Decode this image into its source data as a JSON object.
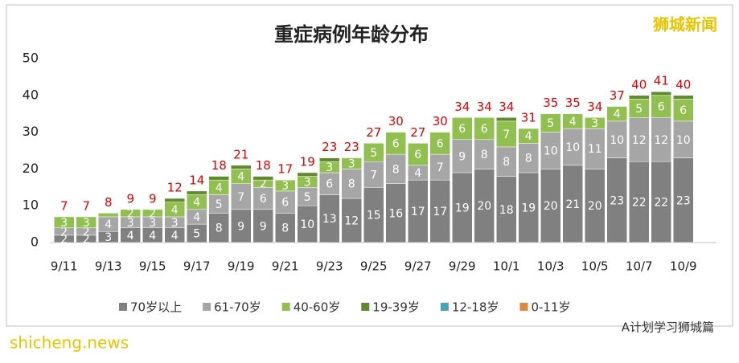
{
  "chart_data": {
    "type": "stacked_bar",
    "title": "重症病例年龄分布",
    "categories": [
      "9/11",
      null,
      "9/13",
      null,
      "9/15",
      null,
      "9/17",
      null,
      "9/19",
      null,
      "9/21",
      null,
      "9/23",
      null,
      "9/25",
      null,
      "9/27",
      null,
      "9/29",
      null,
      "10/1",
      null,
      "10/3",
      null,
      "10/5",
      null,
      "10/7",
      null,
      "10/9"
    ],
    "series": [
      {
        "name": "70岁以上",
        "color": "#808080",
        "values": [
          2,
          2,
          3,
          4,
          4,
          4,
          5,
          8,
          9,
          9,
          8,
          10,
          13,
          12,
          15,
          16,
          17,
          17,
          19,
          20,
          18,
          19,
          20,
          21,
          20,
          23,
          22,
          22,
          23
        ]
      },
      {
        "name": "61-70岁",
        "color": "#a6a6a6",
        "values": [
          2,
          2,
          4,
          3,
          3,
          3,
          4,
          5,
          7,
          6,
          6,
          5,
          6,
          8,
          7,
          8,
          4,
          7,
          9,
          8,
          8,
          8,
          10,
          10,
          11,
          10,
          12,
          12,
          10
        ]
      },
      {
        "name": "40-60岁",
        "color": "#92c050",
        "values": [
          3,
          3,
          1,
          2,
          2,
          4,
          4,
          4,
          4,
          2,
          3,
          3,
          3,
          3,
          5,
          6,
          6,
          6,
          6,
          6,
          7,
          4,
          5,
          4,
          3,
          4,
          5,
          6,
          6
        ]
      },
      {
        "name": "19-39岁",
        "color": "#5f8a2e",
        "values": [
          0,
          0,
          0,
          0,
          0,
          1,
          1,
          1,
          1,
          1,
          0,
          1,
          1,
          0,
          0,
          0,
          0,
          0,
          0,
          0,
          1,
          0,
          0,
          0,
          0,
          0,
          1,
          1,
          1
        ]
      },
      {
        "name": "12-18岁",
        "color": "#4aa3b8",
        "values": [
          0,
          0,
          0,
          0,
          0,
          0,
          0,
          0,
          0,
          0,
          0,
          0,
          0,
          0,
          0,
          0,
          0,
          0,
          0,
          0,
          0,
          0,
          0,
          0,
          0,
          0,
          0,
          0,
          0
        ]
      },
      {
        "name": "0-11岁",
        "color": "#e0873f",
        "values": [
          0,
          0,
          0,
          0,
          0,
          0,
          0,
          0,
          0,
          0,
          0,
          0,
          0,
          0,
          0,
          0,
          0,
          0,
          0,
          0,
          0,
          0,
          0,
          0,
          0,
          0,
          0,
          0,
          0
        ]
      }
    ],
    "totals": [
      7,
      7,
      8,
      9,
      9,
      12,
      14,
      18,
      21,
      18,
      17,
      19,
      23,
      23,
      27,
      30,
      27,
      30,
      34,
      34,
      34,
      31,
      35,
      35,
      34,
      37,
      40,
      41,
      40
    ],
    "ylim": [
      0,
      50
    ],
    "yticks": [
      0,
      10,
      20,
      30,
      40,
      50
    ],
    "grid": false,
    "legend": "bottom",
    "watermark": "狮城新闻",
    "footer_left": "shicheng.news",
    "footer_right": "A计划学习狮城篇"
  }
}
